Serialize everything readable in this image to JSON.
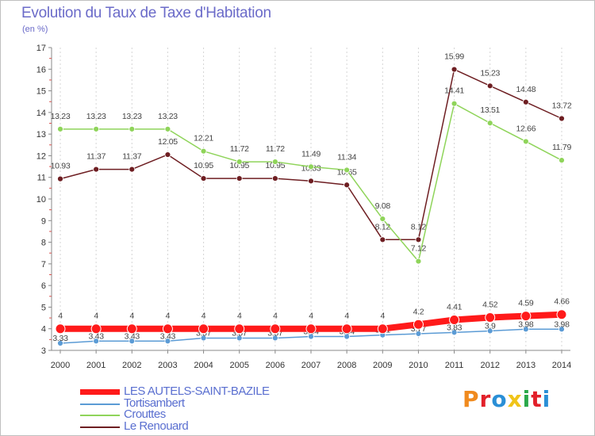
{
  "header": {
    "title": "Evolution du Taux de Taxe d'Habitation",
    "subtitle": "(en %)"
  },
  "logo": {
    "text": "Proxiti",
    "colors": [
      "#f08a1e",
      "#e2202a",
      "#2a8fd6",
      "#f0c419",
      "#2aa84a",
      "#e2202a",
      "#2a8fd6"
    ]
  },
  "chart_data": {
    "type": "line",
    "x": [
      2000,
      2001,
      2002,
      2003,
      2004,
      2005,
      2006,
      2007,
      2008,
      2009,
      2010,
      2011,
      2012,
      2013,
      2014
    ],
    "ylim": [
      3,
      17
    ],
    "yticks": [
      3,
      4,
      5,
      6,
      7,
      8,
      9,
      10,
      11,
      12,
      13,
      14,
      15,
      16,
      17
    ],
    "grid": "vertical dashed",
    "legend_position": "bottom-left",
    "series": [
      {
        "name": "Le Renouard",
        "color": "#6e1e22",
        "values": [
          10.93,
          11.37,
          11.37,
          12.05,
          10.95,
          10.95,
          10.95,
          10.83,
          10.65,
          8.12,
          8.12,
          15.99,
          15.23,
          14.48,
          13.72
        ],
        "labels": [
          "10.93",
          "11.37",
          "11.37",
          "12.05",
          "10.95",
          "10.95",
          "10.95",
          "10.83",
          "10.65",
          "8.12",
          "8.12",
          "15.99",
          "15.23",
          "14.48",
          "13.72"
        ]
      },
      {
        "name": "Crouttes",
        "color": "#8fd45a",
        "values": [
          13.23,
          13.23,
          13.23,
          13.23,
          12.21,
          11.72,
          11.72,
          11.49,
          11.34,
          9.08,
          7.12,
          14.41,
          13.51,
          12.66,
          11.79
        ],
        "labels": [
          "13.23",
          "13.23",
          "13.23",
          "13.23",
          "12.21",
          "11.72",
          "11.72",
          "11.49",
          "11.34",
          "9.08",
          "7.12",
          "14.41",
          "13.51",
          "12.66",
          "11.79"
        ]
      },
      {
        "name": "Tortisambert",
        "color": "#5b9bd5",
        "values": [
          3.33,
          3.43,
          3.43,
          3.43,
          3.57,
          3.57,
          3.57,
          3.64,
          3.64,
          3.71,
          3.77,
          3.83,
          3.9,
          3.98,
          3.98
        ],
        "labels": [
          "3.33",
          "3.43",
          "3.43",
          "3.43",
          "3.57",
          "3.57",
          "3.57",
          "3.64",
          "3.64",
          "3.71",
          "3.77",
          "3.83",
          "3.9",
          "3.98",
          "3.98"
        ]
      },
      {
        "name": "LES AUTELS-SAINT-BAZILE",
        "color": "#ff1a1a",
        "values": [
          4,
          4,
          4,
          4,
          4,
          4,
          4,
          4,
          4,
          4,
          4.2,
          4.41,
          4.52,
          4.59,
          4.66
        ],
        "labels": [
          "4",
          "4",
          "4",
          "4",
          "4",
          "4",
          "4",
          "4",
          "4",
          "4",
          "4.2",
          "4.41",
          "4.52",
          "4.59",
          "4.66"
        ]
      }
    ],
    "legend": [
      "LES AUTELS-SAINT-BAZILE",
      "Tortisambert",
      "Crouttes",
      "Le Renouard"
    ]
  }
}
